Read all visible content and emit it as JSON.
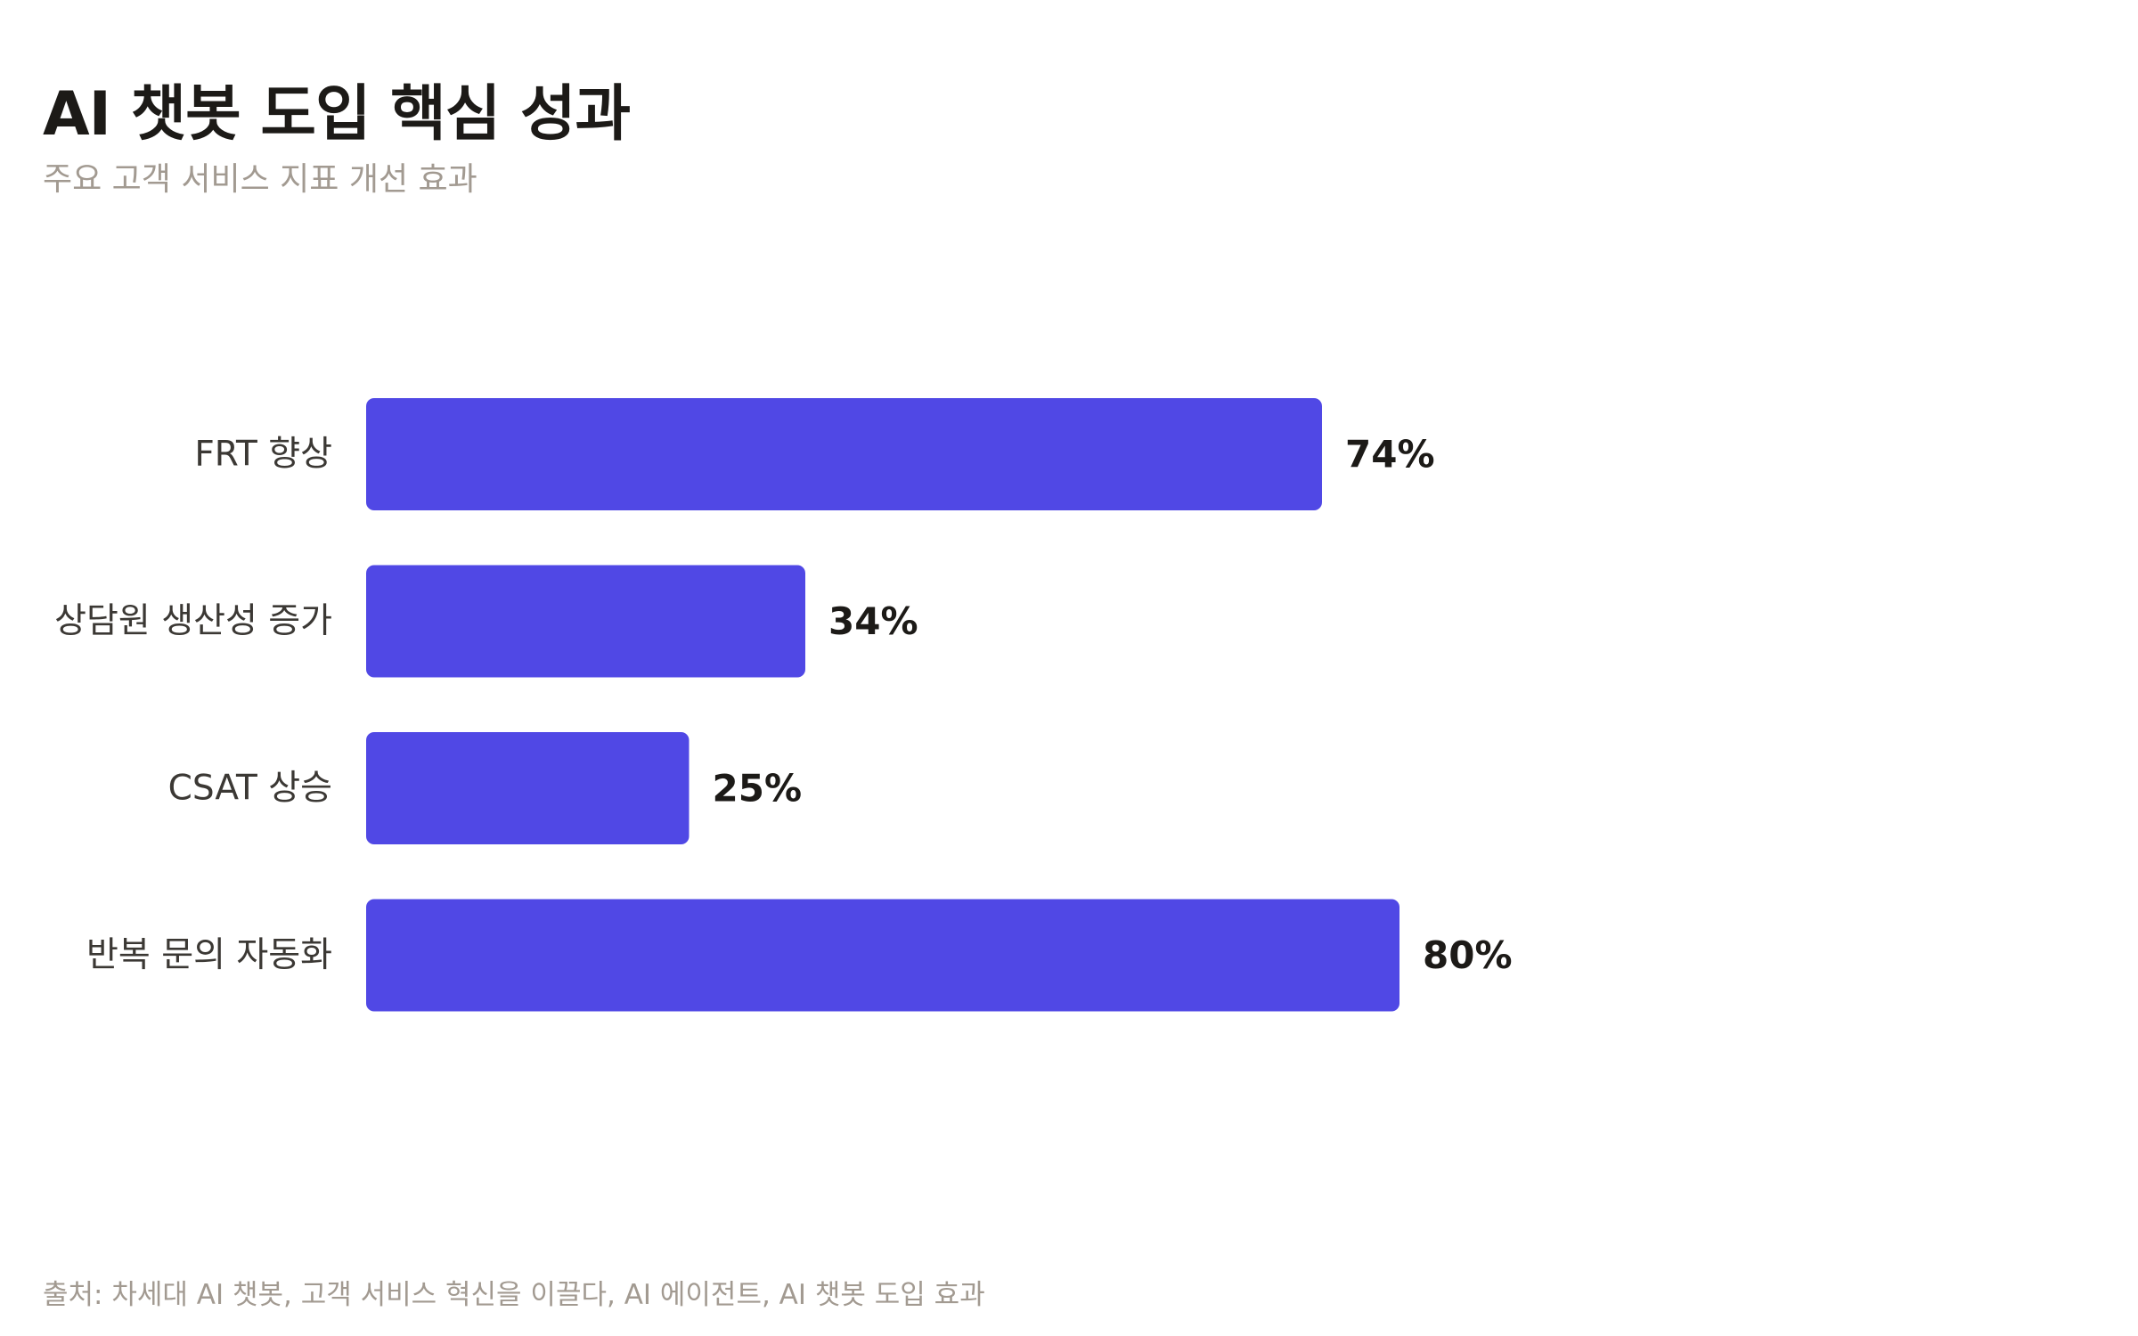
{
  "header": {
    "title": "AI 챗봇 도입 핵심 성과",
    "subtitle": "주요 고객 서비스 지표 개선 효과"
  },
  "footer": {
    "source": "출처: 차세대 AI 챗봇, 고객 서비스 혁신을 이끌다, AI 에이전트, AI 챗봇 도입 효과"
  },
  "colors": {
    "bar": "#5048e5"
  },
  "chart_data": {
    "type": "bar",
    "orientation": "horizontal",
    "title": "AI 챗봇 도입 핵심 성과",
    "subtitle": "주요 고객 서비스 지표 개선 효과",
    "categories": [
      "FRT 향상",
      "상담원 생산성 증가",
      "CSAT 상승",
      "반복 문의 자동화"
    ],
    "values": [
      74,
      34,
      25,
      80
    ],
    "value_labels": [
      "74%",
      "34%",
      "25%",
      "80%"
    ],
    "unit": "%",
    "xlim": [
      0,
      100
    ],
    "grid": false,
    "legend": "none"
  }
}
